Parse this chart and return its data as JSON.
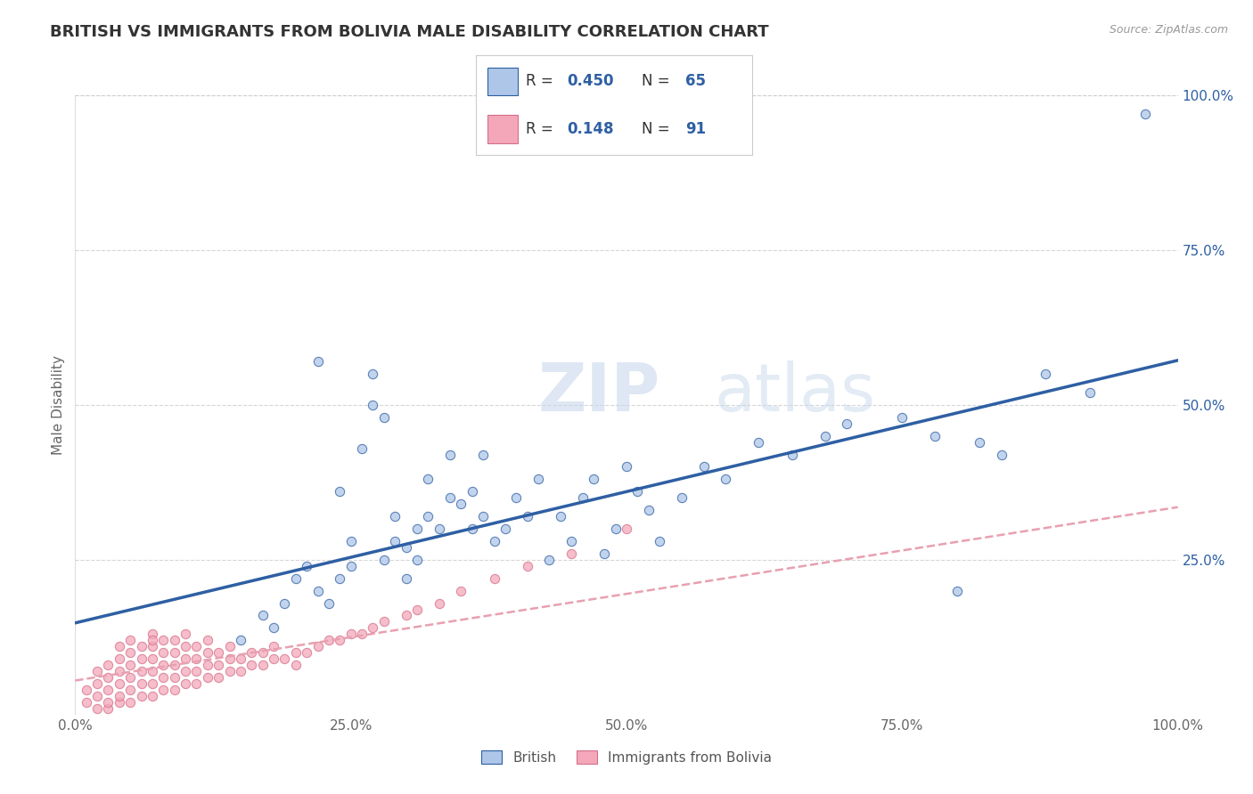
{
  "title": "BRITISH VS IMMIGRANTS FROM BOLIVIA MALE DISABILITY CORRELATION CHART",
  "source": "Source: ZipAtlas.com",
  "ylabel": "Male Disability",
  "xlim": [
    0.0,
    1.0
  ],
  "ylim": [
    0.0,
    1.0
  ],
  "xtick_labels": [
    "0.0%",
    "25.0%",
    "50.0%",
    "75.0%",
    "100.0%"
  ],
  "xtick_positions": [
    0.0,
    0.25,
    0.5,
    0.75,
    1.0
  ],
  "ytick_labels": [
    "25.0%",
    "50.0%",
    "75.0%",
    "100.0%"
  ],
  "ytick_positions": [
    0.25,
    0.5,
    0.75,
    1.0
  ],
  "british_color": "#aec6e8",
  "bolivia_color": "#f4a7b9",
  "trendline_british_color": "#2e5fa3",
  "trendline_bolivia_color": "#e8a0b0",
  "legend_R_british": "0.450",
  "legend_N_british": "65",
  "legend_R_bolivia": "0.148",
  "legend_N_bolivia": "91",
  "watermark_zip": "ZIP",
  "watermark_atlas": "atlas",
  "british_x": [
    0.15,
    0.17,
    0.18,
    0.19,
    0.2,
    0.21,
    0.22,
    0.22,
    0.23,
    0.24,
    0.24,
    0.25,
    0.25,
    0.26,
    0.27,
    0.27,
    0.28,
    0.28,
    0.29,
    0.29,
    0.3,
    0.3,
    0.31,
    0.31,
    0.32,
    0.32,
    0.33,
    0.34,
    0.34,
    0.35,
    0.36,
    0.36,
    0.37,
    0.37,
    0.38,
    0.39,
    0.4,
    0.41,
    0.42,
    0.43,
    0.44,
    0.45,
    0.46,
    0.47,
    0.48,
    0.49,
    0.5,
    0.51,
    0.52,
    0.53,
    0.55,
    0.57,
    0.59,
    0.62,
    0.65,
    0.68,
    0.7,
    0.75,
    0.78,
    0.8,
    0.82,
    0.84,
    0.88,
    0.92,
    0.97
  ],
  "british_y": [
    0.12,
    0.16,
    0.14,
    0.18,
    0.22,
    0.24,
    0.2,
    0.57,
    0.18,
    0.22,
    0.36,
    0.24,
    0.28,
    0.43,
    0.5,
    0.55,
    0.25,
    0.48,
    0.28,
    0.32,
    0.22,
    0.27,
    0.25,
    0.3,
    0.32,
    0.38,
    0.3,
    0.35,
    0.42,
    0.34,
    0.3,
    0.36,
    0.32,
    0.42,
    0.28,
    0.3,
    0.35,
    0.32,
    0.38,
    0.25,
    0.32,
    0.28,
    0.35,
    0.38,
    0.26,
    0.3,
    0.4,
    0.36,
    0.33,
    0.28,
    0.35,
    0.4,
    0.38,
    0.44,
    0.42,
    0.45,
    0.47,
    0.48,
    0.45,
    0.2,
    0.44,
    0.42,
    0.55,
    0.52,
    0.97
  ],
  "bolivia_x": [
    0.01,
    0.01,
    0.02,
    0.02,
    0.02,
    0.02,
    0.03,
    0.03,
    0.03,
    0.03,
    0.03,
    0.04,
    0.04,
    0.04,
    0.04,
    0.04,
    0.04,
    0.05,
    0.05,
    0.05,
    0.05,
    0.05,
    0.05,
    0.06,
    0.06,
    0.06,
    0.06,
    0.06,
    0.07,
    0.07,
    0.07,
    0.07,
    0.07,
    0.07,
    0.08,
    0.08,
    0.08,
    0.08,
    0.08,
    0.09,
    0.09,
    0.09,
    0.09,
    0.09,
    0.1,
    0.1,
    0.1,
    0.1,
    0.1,
    0.11,
    0.11,
    0.11,
    0.11,
    0.12,
    0.12,
    0.12,
    0.12,
    0.13,
    0.13,
    0.13,
    0.14,
    0.14,
    0.14,
    0.15,
    0.15,
    0.16,
    0.16,
    0.17,
    0.17,
    0.18,
    0.18,
    0.19,
    0.2,
    0.2,
    0.21,
    0.22,
    0.23,
    0.24,
    0.25,
    0.26,
    0.27,
    0.28,
    0.3,
    0.31,
    0.33,
    0.35,
    0.38,
    0.41,
    0.45,
    0.5,
    0.07
  ],
  "bolivia_y": [
    0.02,
    0.04,
    0.01,
    0.03,
    0.05,
    0.07,
    0.01,
    0.02,
    0.04,
    0.06,
    0.08,
    0.02,
    0.03,
    0.05,
    0.07,
    0.09,
    0.11,
    0.02,
    0.04,
    0.06,
    0.08,
    0.1,
    0.12,
    0.03,
    0.05,
    0.07,
    0.09,
    0.11,
    0.03,
    0.05,
    0.07,
    0.09,
    0.11,
    0.13,
    0.04,
    0.06,
    0.08,
    0.1,
    0.12,
    0.04,
    0.06,
    0.08,
    0.1,
    0.12,
    0.05,
    0.07,
    0.09,
    0.11,
    0.13,
    0.05,
    0.07,
    0.09,
    0.11,
    0.06,
    0.08,
    0.1,
    0.12,
    0.06,
    0.08,
    0.1,
    0.07,
    0.09,
    0.11,
    0.07,
    0.09,
    0.08,
    0.1,
    0.08,
    0.1,
    0.09,
    0.11,
    0.09,
    0.08,
    0.1,
    0.1,
    0.11,
    0.12,
    0.12,
    0.13,
    0.13,
    0.14,
    0.15,
    0.16,
    0.17,
    0.18,
    0.2,
    0.22,
    0.24,
    0.26,
    0.3,
    0.12
  ],
  "british_trendline_x": [
    0.0,
    1.0
  ],
  "british_trendline_y": [
    0.148,
    0.572
  ],
  "bolivia_trendline_x": [
    0.0,
    1.0
  ],
  "bolivia_trendline_y": [
    0.055,
    0.335
  ],
  "background_color": "#ffffff",
  "grid_color": "#cccccc"
}
